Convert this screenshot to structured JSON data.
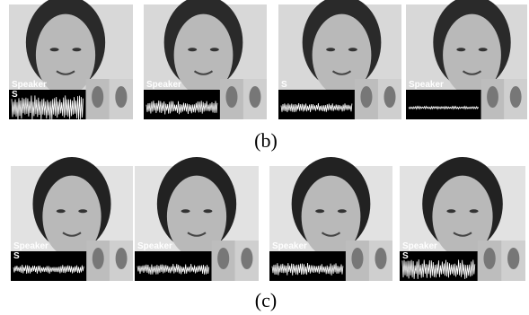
{
  "figures": [
    {
      "label": "(b)",
      "panels": [
        {
          "texts": [
            "Speaker",
            "S"
          ]
        },
        {
          "texts": [
            "Speaker"
          ]
        },
        {
          "texts": [
            "S"
          ]
        },
        {
          "texts": [
            "Speaker"
          ]
        }
      ]
    },
    {
      "label": "(c)",
      "panels": [
        {
          "texts": [
            "Speaker",
            "S"
          ]
        },
        {
          "texts": [
            "Speaker"
          ]
        },
        {
          "texts": [
            "Speaker"
          ]
        },
        {
          "texts": [
            "Speaker",
            "S"
          ]
        }
      ]
    }
  ]
}
